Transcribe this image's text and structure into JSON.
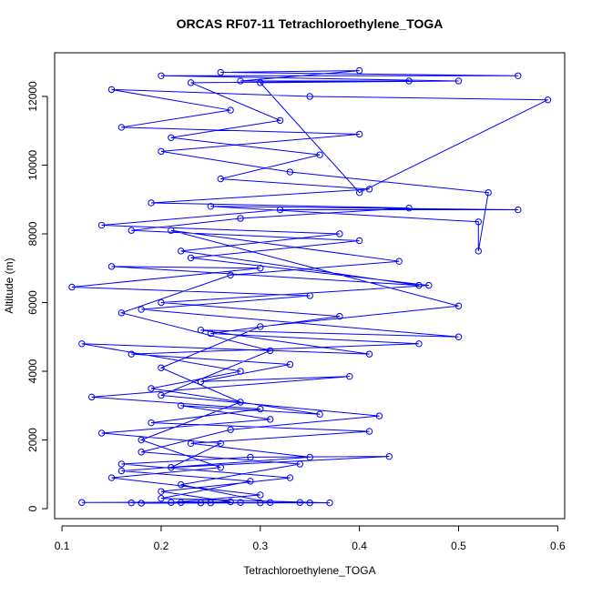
{
  "chart_data": {
    "type": "line",
    "markers": "open-circle",
    "title": "ORCAS RF07-11 Tetrachloroethylene_TOGA",
    "x_label": "Tetrachloroethylene_TOGA",
    "y_label": "Altitude (m)",
    "color": "#0000ff",
    "xlim": [
      0.0926,
      0.607
    ],
    "ylim": [
      -290,
      13270
    ],
    "xticks": [
      0.1,
      0.2,
      0.3,
      0.4,
      0.5,
      0.6
    ],
    "yticks": [
      0,
      2000,
      4000,
      6000,
      8000,
      10000,
      12000
    ],
    "x": [
      0.25,
      0.22,
      0.3,
      0.18,
      0.35,
      0.12,
      0.27,
      0.2,
      0.33,
      0.16,
      0.29,
      0.43,
      0.21,
      0.26,
      0.14,
      0.31,
      0.22,
      0.36,
      0.19,
      0.28,
      0.12,
      0.41,
      0.24,
      0.5,
      0.18,
      0.35,
      0.11,
      0.3,
      0.15,
      0.46,
      0.22,
      0.38,
      0.14,
      0.32,
      0.56,
      0.25,
      0.52,
      0.52,
      0.53,
      0.33,
      0.2,
      0.4,
      0.16,
      0.27,
      0.15,
      0.35,
      0.59,
      0.4,
      0.3,
      0.5,
      0.2,
      0.56,
      0.26,
      0.4,
      0.28,
      0.45,
      0.23,
      0.32,
      0.21,
      0.36,
      0.26,
      0.41,
      0.19,
      0.45,
      0.28,
      0.17,
      0.4,
      0.23,
      0.47,
      0.2,
      0.38,
      0.25,
      0.46,
      0.17,
      0.33,
      0.24,
      0.39,
      0.13,
      0.3,
      0.19,
      0.41,
      0.23,
      0.35,
      0.16,
      0.29,
      0.2,
      0.37,
      0.24,
      0.17,
      0.31,
      0.22,
      0.34,
      0.18,
      0.27,
      0.42,
      0.2,
      0.31,
      0.16,
      0.27,
      0.44,
      0.21,
      0.5,
      0.3,
      0.2,
      0.28,
      0.18,
      0.26,
      0.15,
      0.3,
      0.21,
      0.28,
      0.34
    ],
    "values": [
      170,
      180,
      170,
      160,
      170,
      180,
      200,
      500,
      900,
      1300,
      1500,
      1520,
      1200,
      1900,
      2200,
      2600,
      3000,
      2750,
      3500,
      4000,
      4800,
      4500,
      5200,
      5000,
      5800,
      6200,
      6450,
      7000,
      7050,
      6500,
      7500,
      8000,
      8250,
      8700,
      8700,
      8800,
      8350,
      7500,
      9200,
      9800,
      10400,
      10900,
      11100,
      11600,
      12200,
      12000,
      11900,
      9200,
      12400,
      12450,
      12600,
      12600,
      12700,
      12750,
      12450,
      12450,
      12400,
      11300,
      10800,
      10300,
      9600,
      9300,
      8900,
      8750,
      8450,
      8100,
      7800,
      7300,
      6500,
      6000,
      5600,
      5100,
      4800,
      4500,
      4200,
      3700,
      3850,
      3250,
      2900,
      2500,
      2250,
      1900,
      1500,
      1100,
      800,
      300,
      170,
      170,
      170,
      180,
      700,
      1300,
      1650,
      2300,
      2700,
      3300,
      4600,
      5700,
      6800,
      7200,
      8100,
      5900,
      5300,
      4100,
      3100,
      2000,
      1200,
      900,
      400,
      180,
      180,
      180
    ]
  }
}
